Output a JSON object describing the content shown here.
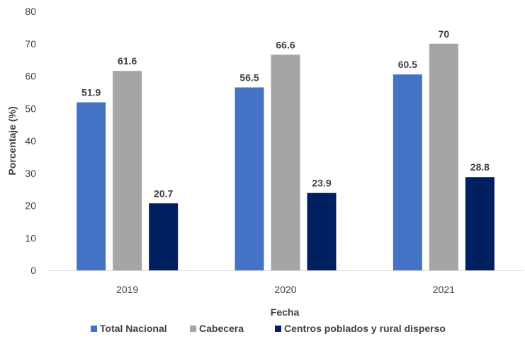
{
  "chart_data": {
    "type": "bar",
    "categories": [
      "2019",
      "2020",
      "2021"
    ],
    "series": [
      {
        "name": "Total Nacional",
        "values": [
          51.9,
          56.5,
          60.5
        ],
        "color": "#4472C4"
      },
      {
        "name": "Cabecera",
        "values": [
          61.6,
          66.6,
          70
        ],
        "color": "#A5A5A5"
      },
      {
        "name": "Centros poblados y rural disperso",
        "values": [
          20.7,
          23.9,
          28.8
        ],
        "color": "#002060"
      }
    ],
    "data_labels": [
      [
        "51.9",
        "56.5",
        "60.5"
      ],
      [
        "61.6",
        "66.6",
        "70"
      ],
      [
        "20.7",
        "23.9",
        "28.8"
      ]
    ],
    "xlabel": "Fecha",
    "ylabel": "Porcentaje (%)",
    "ylim": [
      0,
      80
    ],
    "yticks": [
      "0",
      "10",
      "20",
      "30",
      "40",
      "50",
      "60",
      "70",
      "80"
    ],
    "grid": false,
    "legend_position": "bottom"
  }
}
